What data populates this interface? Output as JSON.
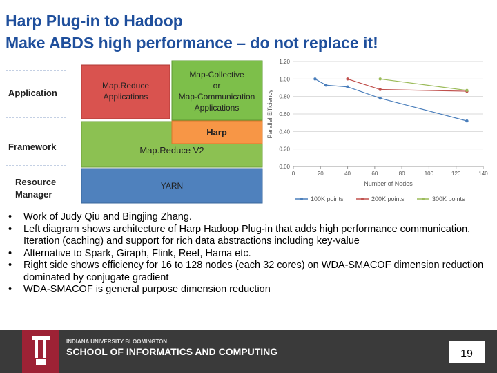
{
  "header": {
    "title": [
      "Harp Plug-in to Hadoop",
      "Make ABDS high performance – do not replace it!"
    ]
  },
  "diagram": {
    "layers": [
      "Application",
      "Framework",
      "Resource Manager"
    ],
    "boxes": [
      "Map.Reduce Applications",
      "Map-Collective or Map-Communication Applications",
      "Harp",
      "Map.Reduce V2",
      "YARN"
    ]
  },
  "chart_data": {
    "type": "line",
    "xlabel": "Number of Nodes",
    "ylabel": "Parallel Efficiency",
    "xlim": [
      0,
      140
    ],
    "xticks": [
      0,
      20,
      40,
      60,
      80,
      100,
      120,
      140
    ],
    "ylim": [
      0,
      1.2
    ],
    "yticks": [
      {
        "value": 0,
        "label": "0.00"
      },
      {
        "value": 0.2,
        "label": "0.20"
      },
      {
        "value": 0.4,
        "label": "0.40"
      },
      {
        "value": 0.6,
        "label": "0.60"
      },
      {
        "value": 0.8,
        "label": "0.80"
      },
      {
        "value": 1.0,
        "label": "1.00"
      },
      {
        "value": 1.2,
        "label": "1.20"
      }
    ],
    "series": [
      {
        "name": "100K points",
        "color": "#4a7ebb",
        "x": [
          16,
          24,
          40,
          64,
          128
        ],
        "values": [
          1.0,
          0.93,
          0.91,
          0.78,
          0.52
        ]
      },
      {
        "name": "200K points",
        "color": "#c0504d",
        "x": [
          40,
          64,
          128
        ],
        "values": [
          1.0,
          0.88,
          0.86
        ]
      },
      {
        "name": "300K points",
        "color": "#9bbb59",
        "x": [
          64,
          128
        ],
        "values": [
          1.0,
          0.87
        ]
      }
    ]
  },
  "bullets": [
    "Work of Judy Qiu and Bingjing Zhang.",
    "Left diagram shows architecture of Harp Hadoop Plug-in that adds high performance communication, Iteration (caching) and support for rich data abstractions including key-value",
    "Alternative to Spark, Giraph, Flink, Reef, Hama etc.",
    "Right side shows efficiency for 16 to 128 nodes (each 32 cores) on WDA-SMACOF dimension reduction dominated by conjugate gradient",
    "WDA-SMACOF is general purpose dimension reduction"
  ],
  "footer": {
    "university": "INDIANA UNIVERSITY BLOOMINGTON",
    "school": "SCHOOL OF INFORMATICS AND COMPUTING",
    "page": "19"
  }
}
